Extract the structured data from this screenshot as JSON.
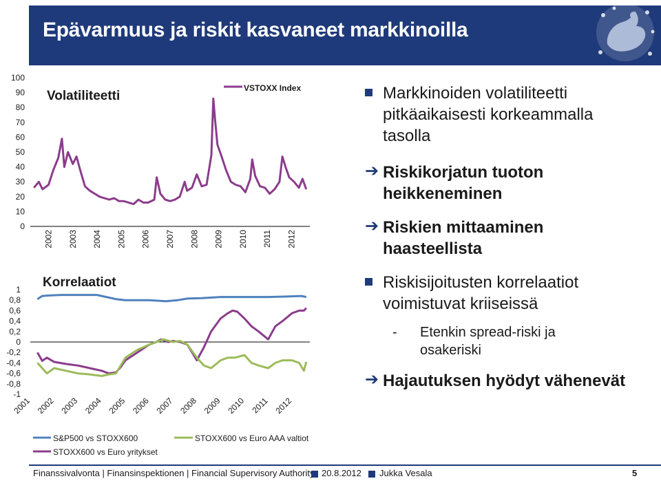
{
  "slide": {
    "title": "Epävarmuus ja riskit kasvaneet markkinoilla",
    "colors": {
      "navy": "#1f3a7a",
      "purple": "#8b3c8b",
      "green": "#9bbb59",
      "blue": "#4f81bd"
    }
  },
  "bullets": {
    "b1": "Markkinoiden volatiliteetti pitkäaikaisesti korkeammalla tasolla",
    "b2": "Riskikorjatun tuoton heikkeneminen",
    "b3": "Riskien mittaaminen haasteellista",
    "b4": "Riskisijoitusten korrelaatiot voimistuvat kriiseissä",
    "b4_sub": "Etenkin spread-riski ja osakeriski",
    "b5": "Hajautuksen hyödyt vähenevät",
    "dash": "-"
  },
  "footer": {
    "org": "Finanssivalvonta | Finansinspektionen | Financial Supervisory Authority",
    "date": "20.8.2012",
    "author": "Jukka Vesala",
    "page": "5"
  },
  "chart_data": [
    {
      "type": "line",
      "title": "Volatiliteetti",
      "ylim": [
        0,
        100
      ],
      "yticks": [
        "100",
        "90",
        "80",
        "70",
        "60",
        "50",
        "40",
        "30",
        "20",
        "10",
        "0"
      ],
      "xticks": [
        "2002",
        "2003",
        "2004",
        "2005",
        "2006",
        "2007",
        "2008",
        "2009",
        "2010",
        "2011",
        "2012"
      ],
      "series": [
        {
          "name": "VSTOXX Index",
          "color": "#8b3c8b",
          "x": [
            2001.4,
            2001.6,
            2001.75,
            2002.0,
            2002.2,
            2002.4,
            2002.55,
            2002.65,
            2002.8,
            2003.0,
            2003.15,
            2003.3,
            2003.5,
            2003.7,
            2003.9,
            2004.1,
            2004.3,
            2004.5,
            2004.7,
            2004.9,
            2005.1,
            2005.3,
            2005.5,
            2005.7,
            2005.9,
            2006.1,
            2006.35,
            2006.45,
            2006.6,
            2006.8,
            2007.0,
            2007.2,
            2007.4,
            2007.6,
            2007.7,
            2007.9,
            2008.1,
            2008.3,
            2008.5,
            2008.7,
            2008.78,
            2008.85,
            2008.95,
            2009.1,
            2009.3,
            2009.5,
            2009.7,
            2009.9,
            2010.1,
            2010.3,
            2010.38,
            2010.5,
            2010.7,
            2010.9,
            2011.1,
            2011.3,
            2011.5,
            2011.62,
            2011.75,
            2011.9,
            2012.1,
            2012.3,
            2012.45,
            2012.6
          ],
          "values": [
            26,
            30,
            25,
            28,
            38,
            46,
            59,
            40,
            50,
            42,
            47,
            38,
            27,
            24,
            22,
            20,
            19,
            18,
            19,
            17,
            17,
            16,
            15,
            18,
            16,
            16,
            18,
            33,
            22,
            18,
            17,
            18,
            20,
            30,
            24,
            26,
            35,
            27,
            28,
            48,
            86,
            72,
            55,
            48,
            38,
            30,
            28,
            27,
            23,
            32,
            45,
            34,
            27,
            26,
            22,
            25,
            30,
            47,
            40,
            33,
            30,
            26,
            32,
            25
          ]
        }
      ]
    },
    {
      "type": "line",
      "title": "Korrelaatiot",
      "ylim": [
        -1,
        1
      ],
      "yticks": [
        "1",
        "0,8",
        "0,6",
        "0,4",
        "0,2",
        "0",
        "-0,2",
        "-0,4",
        "-0,6",
        "-0,8",
        "-1"
      ],
      "xticks": [
        "2001",
        "2002",
        "2003",
        "2004",
        "2005",
        "2006",
        "2007",
        "2008",
        "2009",
        "2010",
        "2011",
        "2012"
      ],
      "series": [
        {
          "name": "S&P500 vs STOXX600",
          "color": "#4f81bd",
          "x": [
            2001.3,
            2001.5,
            2001.8,
            2002.3,
            2003.0,
            2003.8,
            2004.3,
            2004.6,
            2005.0,
            2006.0,
            2006.7,
            2007.2,
            2007.6,
            2008.2,
            2009.0,
            2010.0,
            2011.0,
            2011.8,
            2012.4,
            2012.6
          ],
          "values": [
            0.82,
            0.88,
            0.89,
            0.9,
            0.9,
            0.9,
            0.85,
            0.82,
            0.8,
            0.8,
            0.78,
            0.8,
            0.83,
            0.84,
            0.86,
            0.86,
            0.86,
            0.87,
            0.88,
            0.86
          ]
        },
        {
          "name": "STOXX600 vs Euro yritykset",
          "color": "#8b3c8b",
          "x": [
            2001.3,
            2001.5,
            2001.7,
            2002.0,
            2002.5,
            2003.0,
            2003.5,
            2004.0,
            2004.3,
            2004.6,
            2004.8,
            2005.0,
            2005.5,
            2006.0,
            2006.3,
            2006.5,
            2006.8,
            2007.0,
            2007.3,
            2007.6,
            2008.0,
            2008.3,
            2008.6,
            2009.0,
            2009.3,
            2009.5,
            2009.7,
            2010.0,
            2010.3,
            2010.6,
            2011.0,
            2011.3,
            2011.6,
            2012.0,
            2012.3,
            2012.5,
            2012.6
          ],
          "values": [
            -0.2,
            -0.36,
            -0.3,
            -0.38,
            -0.42,
            -0.45,
            -0.5,
            -0.55,
            -0.6,
            -0.58,
            -0.48,
            -0.35,
            -0.2,
            -0.05,
            0.0,
            0.05,
            0.0,
            0.02,
            0.0,
            -0.05,
            -0.35,
            -0.1,
            0.2,
            0.45,
            0.55,
            0.6,
            0.58,
            0.45,
            0.3,
            0.2,
            0.05,
            0.3,
            0.4,
            0.55,
            0.6,
            0.6,
            0.65
          ]
        },
        {
          "name": "STOXX600 vs Euro AAA valtiot",
          "color": "#9bbb59",
          "x": [
            2001.3,
            2001.5,
            2001.7,
            2002.0,
            2002.5,
            2003.0,
            2003.5,
            2004.0,
            2004.3,
            2004.6,
            2004.8,
            2005.0,
            2005.5,
            2006.0,
            2006.3,
            2006.6,
            2007.0,
            2007.3,
            2007.6,
            2008.0,
            2008.3,
            2008.6,
            2009.0,
            2009.3,
            2009.6,
            2010.0,
            2010.3,
            2010.6,
            2011.0,
            2011.3,
            2011.6,
            2012.0,
            2012.3,
            2012.5,
            2012.6
          ],
          "values": [
            -0.4,
            -0.5,
            -0.6,
            -0.5,
            -0.55,
            -0.6,
            -0.62,
            -0.65,
            -0.62,
            -0.6,
            -0.45,
            -0.3,
            -0.15,
            -0.05,
            0.0,
            0.05,
            0.0,
            0.02,
            -0.05,
            -0.3,
            -0.45,
            -0.5,
            -0.35,
            -0.3,
            -0.3,
            -0.25,
            -0.4,
            -0.45,
            -0.5,
            -0.4,
            -0.35,
            -0.35,
            -0.4,
            -0.55,
            -0.38
          ]
        }
      ]
    }
  ]
}
